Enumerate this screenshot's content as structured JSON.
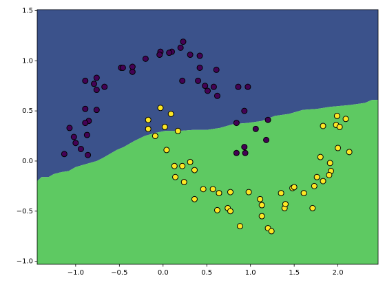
{
  "chart_data": {
    "type": "scatter",
    "xlim": [
      -1.44,
      2.46
    ],
    "ylim": [
      -1.03,
      1.51
    ],
    "xticks": [
      {
        "value": -1.0,
        "label": "−1.0"
      },
      {
        "value": -0.5,
        "label": "−0.5"
      },
      {
        "value": 0.0,
        "label": "0.0"
      },
      {
        "value": 0.5,
        "label": "0.5"
      },
      {
        "value": 1.0,
        "label": "1.0"
      },
      {
        "value": 1.5,
        "label": "1.5"
      },
      {
        "value": 2.0,
        "label": "2.0"
      }
    ],
    "yticks": [
      {
        "value": -1.0,
        "label": "−1.0"
      },
      {
        "value": -0.5,
        "label": "−0.5"
      },
      {
        "value": 0.0,
        "label": "0.0"
      },
      {
        "value": 0.5,
        "label": "0.5"
      },
      {
        "value": 1.0,
        "label": "1.0"
      },
      {
        "value": 1.5,
        "label": "1.5"
      }
    ],
    "regions": {
      "upper_color": "#3b528b",
      "lower_color": "#5ec962"
    },
    "decision_boundary": {
      "x": [
        -1.44,
        -1.39,
        -1.31,
        -1.25,
        -1.16,
        -1.08,
        -1.0,
        -0.92,
        -0.84,
        -0.76,
        -0.69,
        -0.61,
        -0.53,
        -0.45,
        -0.33,
        -0.21,
        -0.09,
        0.02,
        0.18,
        0.34,
        0.5,
        0.65,
        0.81,
        0.97,
        1.13,
        1.28,
        1.44,
        1.6,
        1.76,
        1.91,
        2.15,
        2.31,
        2.39,
        2.46
      ],
      "y": [
        -0.2,
        -0.16,
        -0.16,
        -0.13,
        -0.11,
        -0.1,
        -0.06,
        -0.04,
        -0.02,
        0.0,
        0.03,
        0.07,
        0.11,
        0.14,
        0.2,
        0.25,
        0.28,
        0.3,
        0.3,
        0.31,
        0.31,
        0.33,
        0.37,
        0.38,
        0.4,
        0.45,
        0.47,
        0.51,
        0.52,
        0.54,
        0.56,
        0.58,
        0.61,
        0.61
      ]
    },
    "series": [
      {
        "color": "#440154",
        "x": [
          0.23,
          0.1,
          -0.03,
          -0.04,
          0.07,
          0.2,
          0.31,
          0.42,
          -0.2,
          -0.35,
          -0.35,
          -0.48,
          -0.46,
          0.42,
          0.61,
          -0.76,
          -0.89,
          -0.79,
          -0.67,
          -0.76,
          0.22,
          0.4,
          0.48,
          0.58,
          0.51,
          0.62,
          0.86,
          0.97,
          -0.89,
          -0.76,
          -0.85,
          -0.89,
          0.93,
          0.84,
          -1.07,
          1.06,
          1.2,
          -0.87,
          -1.02,
          -1.0,
          -0.94,
          1.18,
          -1.13,
          -0.86,
          0.93,
          0.84,
          0.94
        ],
        "values": [
          1.19,
          1.09,
          1.09,
          1.06,
          1.08,
          1.13,
          1.06,
          1.05,
          1.02,
          0.94,
          0.89,
          0.93,
          0.93,
          0.93,
          0.91,
          0.83,
          0.8,
          0.77,
          0.74,
          0.71,
          0.8,
          0.8,
          0.75,
          0.74,
          0.7,
          0.65,
          0.74,
          0.74,
          0.52,
          0.51,
          0.4,
          0.38,
          0.5,
          0.38,
          0.33,
          0.32,
          0.41,
          0.26,
          0.24,
          0.18,
          0.12,
          0.21,
          0.07,
          0.06,
          0.14,
          0.08,
          0.08
        ]
      },
      {
        "color": "#fde725",
        "x": [
          -0.03,
          0.09,
          -0.17,
          -0.17,
          0.02,
          0.17,
          -0.09,
          0.04,
          0.13,
          0.22,
          0.31,
          0.36,
          0.14,
          0.24,
          0.46,
          0.57,
          0.64,
          0.62,
          0.36,
          0.77,
          0.74,
          0.77,
          0.88,
          0.98,
          1.11,
          1.13,
          1.13,
          1.2,
          1.24,
          1.35,
          1.39,
          1.4,
          1.48,
          1.5,
          1.61,
          1.73,
          1.76,
          1.71,
          1.8,
          1.83,
          1.91,
          1.92,
          1.9,
          2.0,
          1.99,
          1.98,
          2.02,
          2.09,
          2.13,
          1.83
        ],
        "values": [
          0.53,
          0.47,
          0.41,
          0.32,
          0.34,
          0.3,
          0.25,
          0.11,
          -0.05,
          -0.05,
          -0.01,
          -0.09,
          -0.16,
          -0.21,
          -0.28,
          -0.28,
          -0.32,
          -0.49,
          -0.38,
          -0.31,
          -0.47,
          -0.5,
          -0.65,
          -0.31,
          -0.38,
          -0.44,
          -0.55,
          -0.67,
          -0.7,
          -0.32,
          -0.47,
          -0.43,
          -0.27,
          -0.26,
          -0.32,
          -0.25,
          -0.16,
          -0.47,
          0.04,
          -0.2,
          -0.02,
          -0.1,
          -0.14,
          0.13,
          0.45,
          0.36,
          0.34,
          0.42,
          0.09,
          0.35
        ]
      }
    ]
  }
}
